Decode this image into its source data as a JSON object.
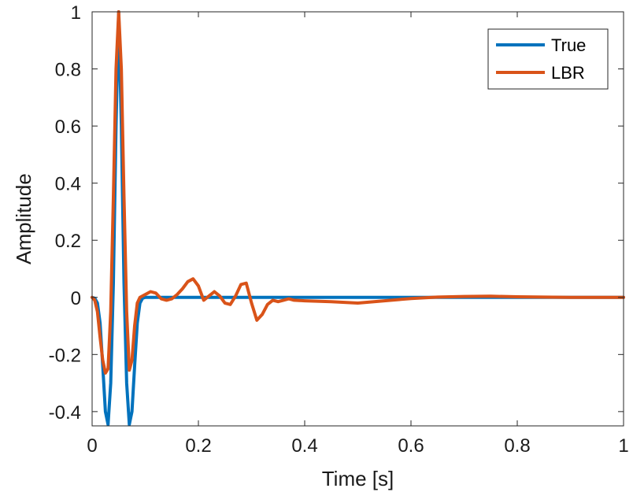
{
  "chart_data": {
    "type": "line",
    "xlabel": "Time [s]",
    "ylabel": "Amplitude",
    "xlim": [
      0,
      1
    ],
    "ylim": [
      -0.45,
      1
    ],
    "xticks": [
      0,
      0.2,
      0.4,
      0.6,
      0.8,
      1
    ],
    "xtick_labels": [
      "0",
      "0.2",
      "0.4",
      "0.6",
      "0.8",
      "1"
    ],
    "yticks": [
      -0.4,
      -0.2,
      0,
      0.2,
      0.4,
      0.6,
      0.8,
      1
    ],
    "ytick_labels": [
      "-0.4",
      "-0.2",
      "0",
      "0.2",
      "0.4",
      "0.6",
      "0.8",
      "1"
    ],
    "grid": false,
    "legend_position": "top-right",
    "series": [
      {
        "name": "True",
        "color": "#0072BD",
        "x": [
          0,
          0.005,
          0.01,
          0.015,
          0.02,
          0.025,
          0.03,
          0.035,
          0.04,
          0.045,
          0.05,
          0.055,
          0.06,
          0.065,
          0.07,
          0.075,
          0.08,
          0.085,
          0.09,
          0.095,
          0.1,
          1
        ],
        "y": [
          0,
          -0.003,
          -0.02,
          -0.09,
          -0.24,
          -0.4,
          -0.445,
          -0.3,
          0.05,
          0.6,
          1,
          0.6,
          0.05,
          -0.3,
          -0.445,
          -0.4,
          -0.24,
          -0.09,
          -0.02,
          -0.003,
          0,
          0
        ]
      },
      {
        "name": "LBR",
        "color": "#D95319",
        "x": [
          0,
          0.005,
          0.01,
          0.015,
          0.02,
          0.025,
          0.03,
          0.035,
          0.04,
          0.045,
          0.05,
          0.055,
          0.06,
          0.065,
          0.07,
          0.075,
          0.08,
          0.085,
          0.09,
          0.1,
          0.11,
          0.12,
          0.13,
          0.14,
          0.15,
          0.16,
          0.17,
          0.18,
          0.19,
          0.2,
          0.21,
          0.22,
          0.23,
          0.24,
          0.25,
          0.26,
          0.27,
          0.28,
          0.29,
          0.3,
          0.31,
          0.32,
          0.33,
          0.34,
          0.35,
          0.36,
          0.37,
          0.38,
          0.4,
          0.45,
          0.5,
          0.55,
          0.6,
          0.65,
          0.7,
          0.75,
          0.8,
          0.9,
          1
        ],
        "y": [
          0,
          -0.01,
          -0.05,
          -0.14,
          -0.22,
          -0.265,
          -0.25,
          -0.05,
          0.35,
          0.8,
          1,
          0.8,
          0.35,
          -0.05,
          -0.255,
          -0.22,
          -0.1,
          -0.02,
          0,
          0.01,
          0.02,
          0.015,
          -0.005,
          -0.01,
          -0.005,
          0.01,
          0.03,
          0.055,
          0.065,
          0.04,
          -0.01,
          0.005,
          0.02,
          0.005,
          -0.02,
          -0.025,
          0.005,
          0.045,
          0.05,
          -0.02,
          -0.08,
          -0.06,
          -0.025,
          -0.01,
          -0.015,
          -0.01,
          -0.005,
          -0.01,
          -0.012,
          -0.015,
          -0.02,
          -0.012,
          -0.004,
          0.001,
          0.003,
          0.004,
          0.002,
          0,
          0
        ]
      }
    ]
  }
}
